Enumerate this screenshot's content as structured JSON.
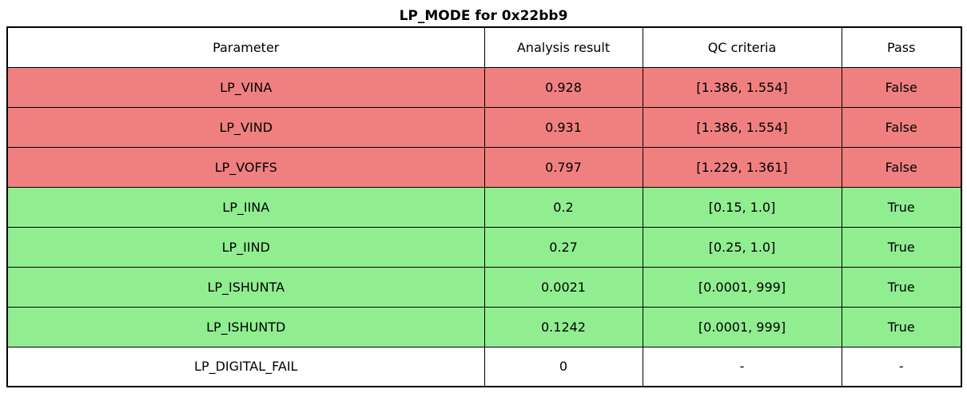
{
  "title": "LP_MODE for 0x22bb9",
  "colors": {
    "fail_row": "#f08080",
    "pass_row": "#90ee90",
    "neutral_row": "#ffffff",
    "border": "#000000",
    "text": "#000000"
  },
  "chart_data": {
    "type": "table",
    "title": "LP_MODE for 0x22bb9",
    "columns": [
      "Parameter",
      "Analysis result",
      "QC criteria",
      "Pass"
    ],
    "rows": [
      {
        "parameter": "LP_VINA",
        "analysis_result": "0.928",
        "qc_criteria": "[1.386, 1.554]",
        "pass": "False",
        "status": "fail"
      },
      {
        "parameter": "LP_VIND",
        "analysis_result": "0.931",
        "qc_criteria": "[1.386, 1.554]",
        "pass": "False",
        "status": "fail"
      },
      {
        "parameter": "LP_VOFFS",
        "analysis_result": "0.797",
        "qc_criteria": "[1.229, 1.361]",
        "pass": "False",
        "status": "fail"
      },
      {
        "parameter": "LP_IINA",
        "analysis_result": "0.2",
        "qc_criteria": "[0.15, 1.0]",
        "pass": "True",
        "status": "pass"
      },
      {
        "parameter": "LP_IIND",
        "analysis_result": "0.27",
        "qc_criteria": "[0.25, 1.0]",
        "pass": "True",
        "status": "pass"
      },
      {
        "parameter": "LP_ISHUNTA",
        "analysis_result": "0.0021",
        "qc_criteria": "[0.0001, 999]",
        "pass": "True",
        "status": "pass"
      },
      {
        "parameter": "LP_ISHUNTD",
        "analysis_result": "0.1242",
        "qc_criteria": "[0.0001, 999]",
        "pass": "True",
        "status": "pass"
      },
      {
        "parameter": "LP_DIGITAL_FAIL",
        "analysis_result": "0",
        "qc_criteria": "-",
        "pass": "-",
        "status": "none"
      }
    ],
    "layout": {
      "legend": "none",
      "grid": "cell-borders"
    }
  }
}
